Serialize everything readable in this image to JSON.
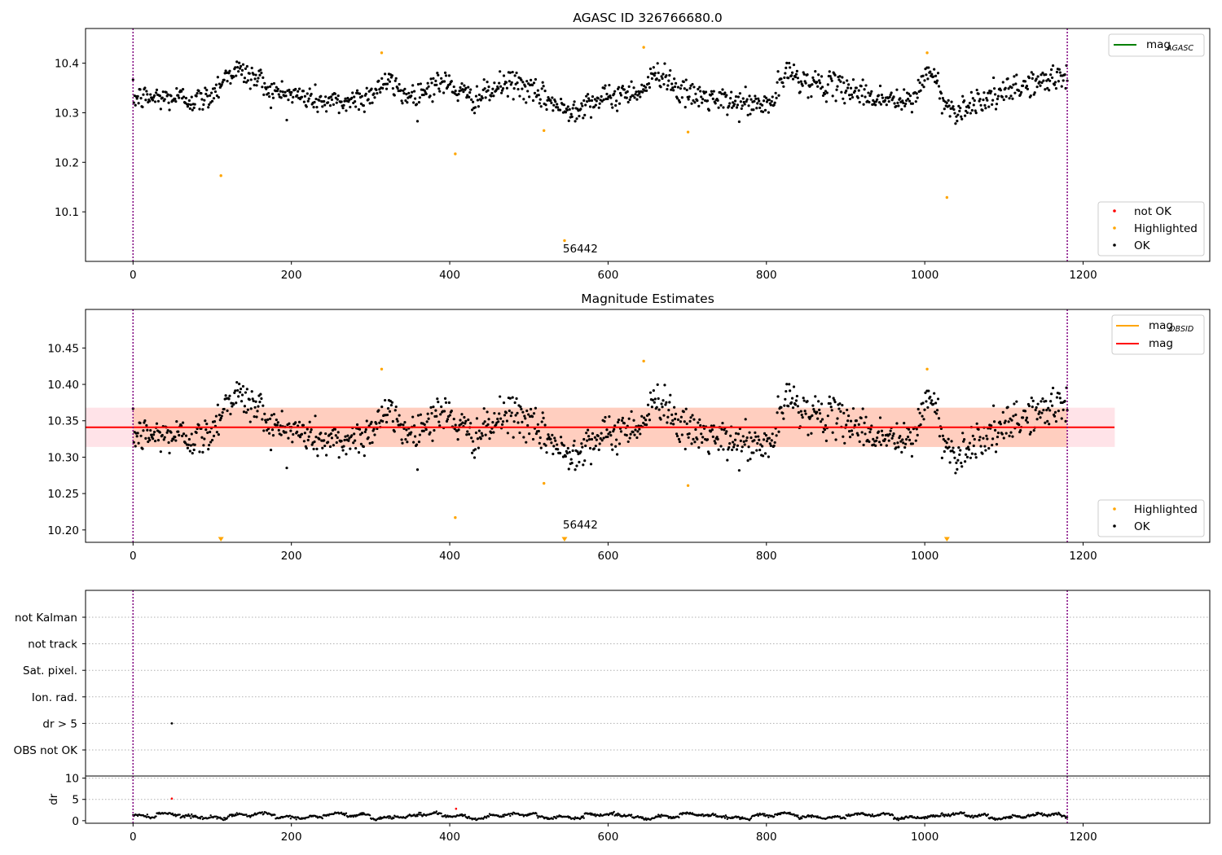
{
  "chart_data": [
    {
      "panel": "top",
      "type": "scatter",
      "title": "AGASC ID 326766680.0",
      "xlim": [
        -60,
        1360
      ],
      "ylim": [
        10.0,
        10.47
      ],
      "x_ticks": [
        0,
        200,
        400,
        600,
        800,
        1000,
        1200
      ],
      "y_ticks": [
        10.1,
        10.2,
        10.3,
        10.4
      ],
      "vlines_x": [
        0,
        1180
      ],
      "annotation": {
        "text": "56442",
        "x": 565,
        "y": 10.018
      },
      "legend_lines": [
        {
          "label": "mag",
          "sub": "AGASC",
          "color": "#008000"
        }
      ],
      "legend_points": [
        {
          "label": "not OK",
          "color": "#ff0000"
        },
        {
          "label": "Highlighted",
          "color": "#ffa500"
        },
        {
          "label": "OK",
          "color": "#000000"
        }
      ],
      "highlighted_points": [
        [
          111,
          10.173
        ],
        [
          314,
          10.421
        ],
        [
          407,
          10.217
        ],
        [
          519,
          10.264
        ],
        [
          545,
          10.042
        ],
        [
          645,
          10.432
        ],
        [
          701,
          10.261
        ],
        [
          1003,
          10.421
        ],
        [
          1028,
          10.129
        ]
      ],
      "ok_series": {
        "n": 1180,
        "x_range": [
          0,
          1180
        ],
        "baseline": 10.335,
        "noise": 0.022,
        "trend_knots": [
          [
            0,
            10.33
          ],
          [
            60,
            10.33
          ],
          [
            85,
            10.325
          ],
          [
            130,
            10.385
          ],
          [
            155,
            10.37
          ],
          [
            180,
            10.34
          ],
          [
            260,
            10.32
          ],
          [
            290,
            10.33
          ],
          [
            320,
            10.36
          ],
          [
            350,
            10.335
          ],
          [
            390,
            10.36
          ],
          [
            430,
            10.33
          ],
          [
            480,
            10.36
          ],
          [
            520,
            10.33
          ],
          [
            545,
            10.305
          ],
          [
            585,
            10.325
          ],
          [
            640,
            10.345
          ],
          [
            665,
            10.38
          ],
          [
            700,
            10.335
          ],
          [
            760,
            10.32
          ],
          [
            800,
            10.315
          ],
          [
            830,
            10.38
          ],
          [
            855,
            10.36
          ],
          [
            900,
            10.35
          ],
          [
            940,
            10.33
          ],
          [
            980,
            10.32
          ],
          [
            1005,
            10.38
          ],
          [
            1035,
            10.305
          ],
          [
            1080,
            10.33
          ],
          [
            1140,
            10.36
          ],
          [
            1180,
            10.375
          ]
        ]
      }
    },
    {
      "panel": "middle",
      "type": "scatter",
      "title": "Magnitude Estimates",
      "xlim": [
        -60,
        1360
      ],
      "ylim": [
        10.183,
        10.503
      ],
      "x_ticks": [
        0,
        200,
        400,
        600,
        800,
        1000,
        1200
      ],
      "y_ticks": [
        10.2,
        10.25,
        10.3,
        10.35,
        10.4,
        10.45
      ],
      "vlines_x": [
        0,
        1180
      ],
      "annotation": {
        "text": "56442",
        "x": 565,
        "y": 10.2
      },
      "mag_line": {
        "value": 10.341,
        "x_range": [
          -60,
          1180
        ],
        "color": "#ff0000"
      },
      "mag_band": {
        "low": 10.314,
        "high": 10.368,
        "x_range": [
          -60,
          1240
        ]
      },
      "mag_obsid_band": {
        "low": 10.314,
        "high": 10.368,
        "x_range": [
          0,
          1180
        ]
      },
      "legend_lines": [
        {
          "label": "mag",
          "sub": "OBSID",
          "color": "#ffa500"
        },
        {
          "label": "mag",
          "sub": "",
          "color": "#ff0000"
        }
      ],
      "legend_points": [
        {
          "label": "Highlighted",
          "color": "#ffa500"
        },
        {
          "label": "OK",
          "color": "#000000"
        }
      ],
      "highlighted_points": [
        [
          314,
          10.421
        ],
        [
          407,
          10.217
        ],
        [
          519,
          10.264
        ],
        [
          645,
          10.432
        ],
        [
          701,
          10.261
        ],
        [
          1003,
          10.421
        ]
      ],
      "offscale_markers_x": [
        111,
        545,
        1028
      ]
    },
    {
      "panel": "flags",
      "type": "scatter",
      "xlim": [
        -60,
        1360
      ],
      "vlines_x": [
        0,
        1180
      ],
      "categories": [
        "OBS not OK",
        "dr > 5",
        "Ion. rad.",
        "Sat. pixel.",
        "not track",
        "not Kalman"
      ],
      "flag_points": [
        {
          "category": "dr > 5",
          "x": 49
        }
      ]
    },
    {
      "panel": "dr",
      "type": "scatter",
      "ylabel": "dr",
      "xlim": [
        -60,
        1360
      ],
      "ylim": [
        -0.6,
        10.5
      ],
      "x_ticks": [
        0,
        200,
        400,
        600,
        800,
        1000,
        1200
      ],
      "y_ticks": [
        0,
        5,
        10
      ],
      "vlines_x": [
        0,
        1180
      ],
      "red_points": [
        [
          49,
          5.2
        ],
        [
          408,
          2.8
        ]
      ],
      "ok_series": {
        "x_range": [
          0,
          1180
        ],
        "base": 1.1,
        "amplitude": 0.5,
        "noise": 0.15
      }
    }
  ]
}
